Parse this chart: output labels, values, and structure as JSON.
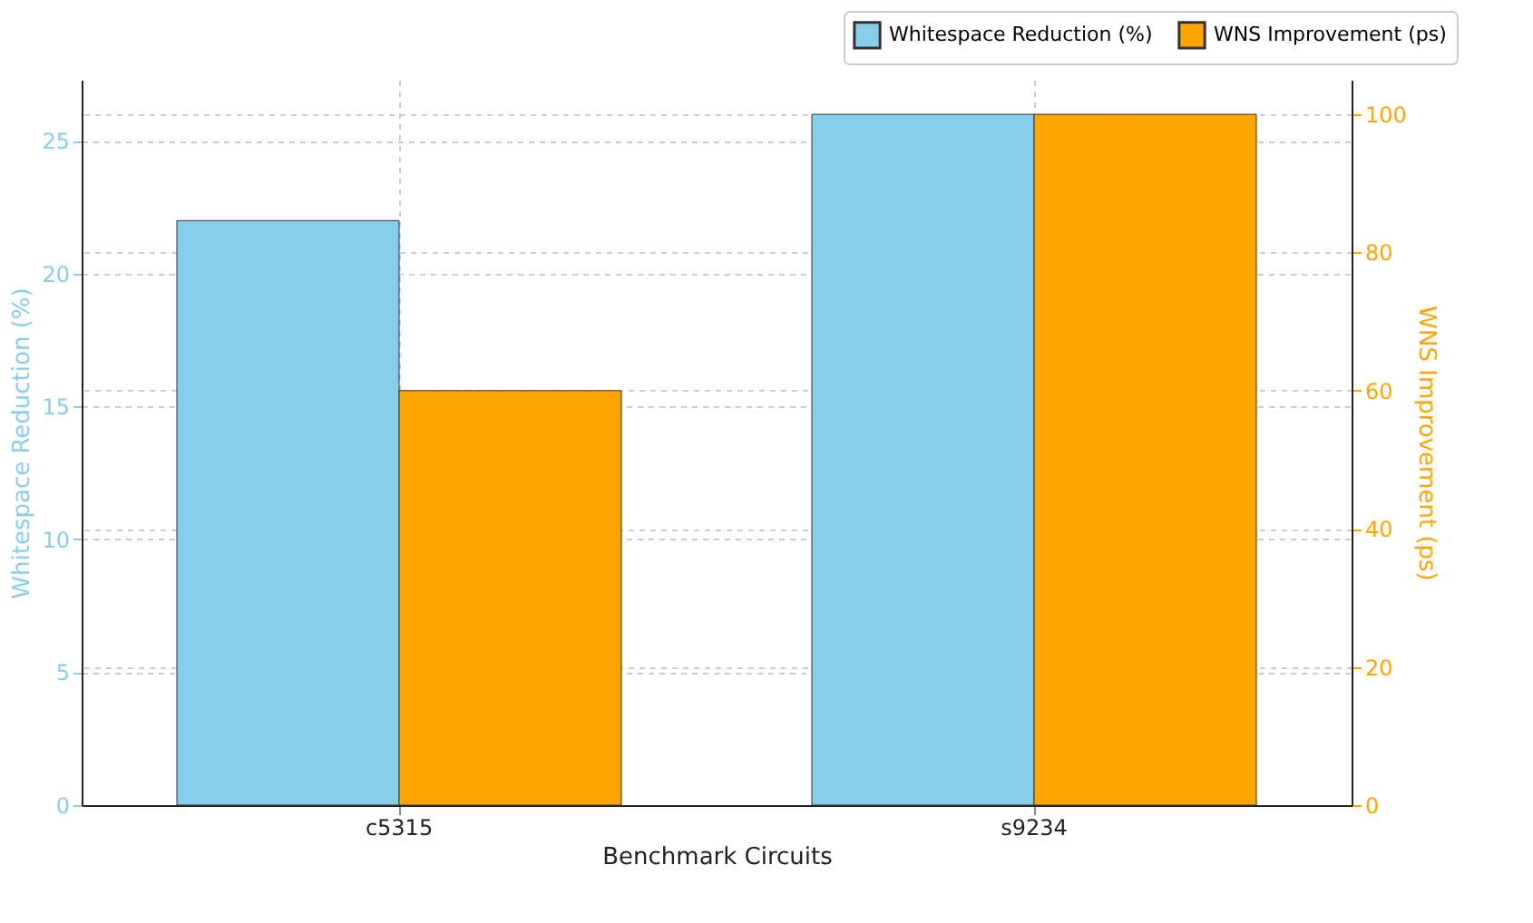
{
  "chart_data": {
    "type": "bar",
    "xlabel": "Benchmark Circuits",
    "ylabel": "Whitespace Reduction (%)",
    "y2label": "WNS Improvement (ps)",
    "categories": [
      "c5315",
      "s9234"
    ],
    "series": [
      {
        "name": "Whitespace Reduction (%)",
        "color": "#87ceeb",
        "values": [
          22,
          26
        ]
      },
      {
        "name": "WNS Improvement (ps)",
        "color": "#ffa500",
        "values": [
          60,
          100
        ],
        "axis": "y2"
      }
    ],
    "ylim": [
      0,
      27.3
    ],
    "yticks": [
      0,
      5,
      10,
      15,
      20,
      25
    ],
    "y2lim": [
      0,
      105
    ],
    "y2ticks": [
      0,
      20,
      40,
      60,
      80,
      100
    ],
    "grid": true,
    "legend": "top right"
  }
}
